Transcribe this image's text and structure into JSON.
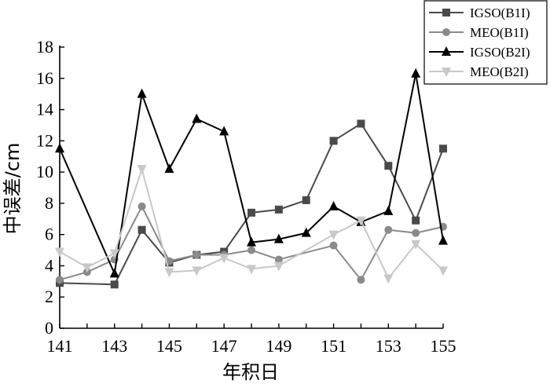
{
  "chart_data": {
    "type": "line",
    "xlabel": "年积日",
    "ylabel": "中误差/cm",
    "xlim": [
      141,
      155
    ],
    "ylim": [
      0,
      18
    ],
    "xticks": [
      141,
      143,
      145,
      147,
      149,
      151,
      153,
      155
    ],
    "yticks": [
      0,
      2,
      4,
      6,
      8,
      10,
      12,
      14,
      16,
      18
    ],
    "legend_position": "top-right",
    "grid": false,
    "x": [
      141,
      142,
      143,
      144,
      145,
      146,
      147,
      148,
      149,
      150,
      151,
      152,
      153,
      154,
      155
    ],
    "series": [
      {
        "name": "IGSO(B1I)",
        "marker": "square",
        "color": "#4a4a4a",
        "values": [
          2.9,
          null,
          2.8,
          6.3,
          4.2,
          4.7,
          4.9,
          7.4,
          7.6,
          8.2,
          12.0,
          13.1,
          10.4,
          6.9,
          11.5
        ]
      },
      {
        "name": "MEO(B1I)",
        "marker": "circle",
        "color": "#8a8a8a",
        "values": [
          3.1,
          3.6,
          4.4,
          7.8,
          4.3,
          4.7,
          4.7,
          5.0,
          4.4,
          null,
          5.3,
          3.1,
          6.3,
          6.1,
          6.5
        ]
      },
      {
        "name": "IGSO(B2I)",
        "marker": "triangle-up",
        "color": "#000000",
        "values": [
          11.5,
          null,
          3.5,
          15.0,
          10.2,
          13.4,
          12.6,
          5.5,
          5.7,
          6.1,
          7.8,
          6.8,
          7.5,
          16.3,
          5.6
        ]
      },
      {
        "name": "MEO(B2I)",
        "marker": "triangle-down",
        "color": "#c8c8c8",
        "values": [
          4.9,
          3.9,
          4.8,
          10.2,
          3.6,
          3.7,
          4.5,
          3.8,
          4.0,
          null,
          6.0,
          6.9,
          3.2,
          5.4,
          3.7
        ]
      }
    ]
  }
}
